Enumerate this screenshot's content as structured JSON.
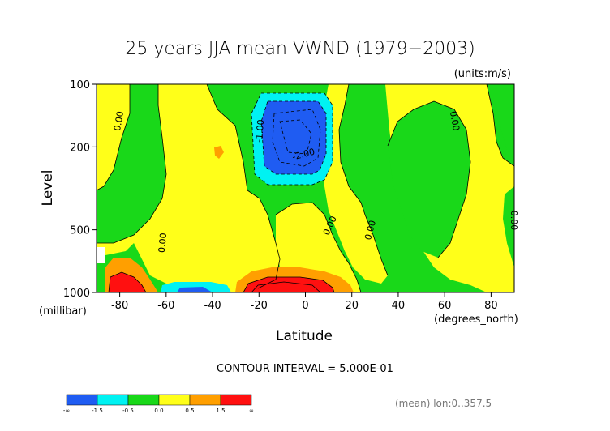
{
  "chart_data": {
    "type": "contour",
    "title": "25 years JJA mean VWND  (1979−2003)",
    "units_label": "(units:m/s)",
    "xlabel": "Latitude",
    "ylabel": "Level",
    "x_unit_label": "(degrees_north)",
    "y_unit_label": "(millibar)",
    "xlim": [
      -90,
      90
    ],
    "ylim": [
      1000,
      100
    ],
    "y_scale": "log",
    "x_ticks": [
      -80,
      -60,
      -40,
      -20,
      0,
      20,
      40,
      60,
      80
    ],
    "y_ticks": [
      100,
      200,
      500,
      1000
    ],
    "contour_interval_text": "CONTOUR INTERVAL = 5.000E-01",
    "footer_text": "(mean) lon:0..357.5",
    "contour_labels": [
      "0.00",
      "0.00",
      "-1.00",
      "-2.00",
      "0.00",
      "0.00",
      "0.00",
      "0.00",
      "0.00"
    ],
    "colorbar": {
      "boundaries": [
        "-∞",
        "-1.5",
        "-0.5",
        "0.0",
        "0.5",
        "1.5",
        "∞"
      ],
      "colors": [
        "#1f5cf2",
        "#00f2f2",
        "#19d819",
        "#ffff19",
        "#ff9f00",
        "#ff1010"
      ]
    },
    "regions": [
      {
        "category": "negative_strong",
        "lat_range": [
          -20,
          10
        ],
        "level_range": [
          140,
          260
        ],
        "min_value": -2.0
      },
      {
        "category": "positive_strong",
        "lat_range": [
          -25,
          20
        ],
        "level_range": [
          800,
          1000
        ],
        "max_value": 2.5
      },
      {
        "category": "positive_strong",
        "lat_range": [
          -90,
          -70
        ],
        "level_range": [
          850,
          1000
        ],
        "max_value": 2.0
      },
      {
        "category": "negative_moderate",
        "lat_range": [
          -60,
          -30
        ],
        "level_range": [
          930,
          1000
        ],
        "min_value": -1.0
      }
    ]
  }
}
